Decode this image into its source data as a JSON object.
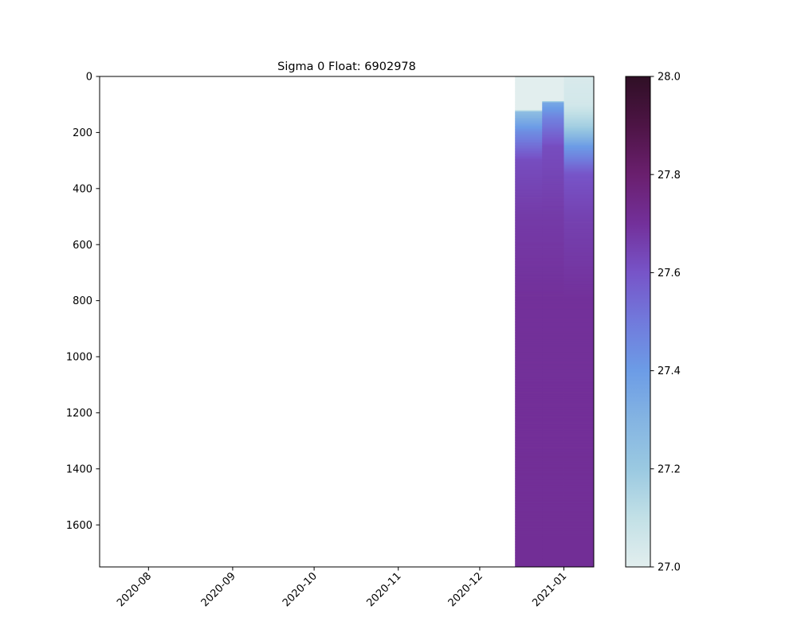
{
  "chart_data": {
    "type": "heatmap",
    "title": "Sigma 0 Float: 6902978",
    "xlabel": "",
    "ylabel": "",
    "x_axis": {
      "type": "date",
      "range": [
        "2020-07-14",
        "2021-01-12"
      ],
      "ticks": [
        "2020-08",
        "2020-09",
        "2020-10",
        "2020-11",
        "2020-12",
        "2021-01"
      ],
      "tick_dates": [
        "2020-08-01",
        "2020-09-01",
        "2020-10-01",
        "2020-11-01",
        "2020-12-01",
        "2021-01-01"
      ]
    },
    "y_axis": {
      "range": [
        1750,
        0
      ],
      "inverted": true,
      "ticks": [
        "0",
        "200",
        "400",
        "600",
        "800",
        "1000",
        "1200",
        "1400",
        "1600"
      ],
      "tick_values": [
        0,
        200,
        400,
        600,
        800,
        1000,
        1200,
        1400,
        1600
      ]
    },
    "colorbar": {
      "range": [
        27.0,
        28.0
      ],
      "ticks": [
        "27.0",
        "27.2",
        "27.4",
        "27.6",
        "27.8",
        "28.0"
      ],
      "tick_values": [
        27.0,
        27.2,
        27.4,
        27.6,
        27.8,
        28.0
      ],
      "colors": [
        {
          "v": 27.0,
          "c": "#e2eeee"
        },
        {
          "v": 27.1,
          "c": "#c2e0e6"
        },
        {
          "v": 27.2,
          "c": "#9ac9e1"
        },
        {
          "v": 27.3,
          "c": "#84b4e2"
        },
        {
          "v": 27.4,
          "c": "#6c9ce6"
        },
        {
          "v": 27.5,
          "c": "#717adc"
        },
        {
          "v": 27.6,
          "c": "#7754c8"
        },
        {
          "v": 27.7,
          "c": "#73309a"
        },
        {
          "v": 27.8,
          "c": "#6a1f6e"
        },
        {
          "v": 27.9,
          "c": "#4d1445"
        },
        {
          "v": 28.0,
          "c": "#2f0f25"
        }
      ]
    },
    "profiles": [
      {
        "x_start": "2020-12-14",
        "x_end": "2020-12-24",
        "levels": [
          {
            "depth": 0,
            "value": 27.0
          },
          {
            "depth": 120,
            "value": 27.0
          },
          {
            "depth": 125,
            "value": 27.25
          },
          {
            "depth": 200,
            "value": 27.45
          },
          {
            "depth": 300,
            "value": 27.62
          },
          {
            "depth": 500,
            "value": 27.67
          },
          {
            "depth": 800,
            "value": 27.7
          },
          {
            "depth": 1750,
            "value": 27.71
          }
        ]
      },
      {
        "x_start": "2020-12-24",
        "x_end": "2021-01-01",
        "levels": [
          {
            "depth": 0,
            "value": 27.0
          },
          {
            "depth": 88,
            "value": 27.0
          },
          {
            "depth": 92,
            "value": 27.35
          },
          {
            "depth": 150,
            "value": 27.48
          },
          {
            "depth": 250,
            "value": 27.62
          },
          {
            "depth": 500,
            "value": 27.67
          },
          {
            "depth": 800,
            "value": 27.7
          },
          {
            "depth": 1750,
            "value": 27.71
          }
        ]
      },
      {
        "x_start": "2021-01-01",
        "x_end": "2021-01-12",
        "levels": [
          {
            "depth": 0,
            "value": 27.03
          },
          {
            "depth": 100,
            "value": 27.05
          },
          {
            "depth": 180,
            "value": 27.18
          },
          {
            "depth": 250,
            "value": 27.4
          },
          {
            "depth": 350,
            "value": 27.6
          },
          {
            "depth": 500,
            "value": 27.65
          },
          {
            "depth": 800,
            "value": 27.7
          },
          {
            "depth": 1750,
            "value": 27.71
          }
        ]
      }
    ]
  }
}
